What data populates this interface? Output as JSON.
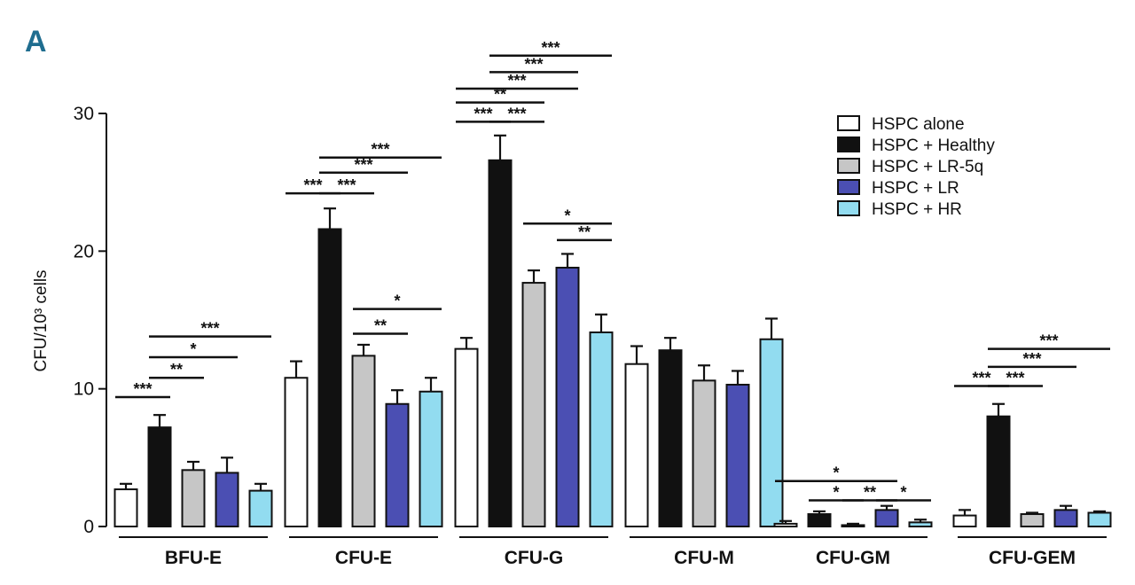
{
  "panel_label": "A",
  "colors": {
    "HSPC alone": "#ffffff",
    "HSPC + Healthy": "#111111",
    "HSPC + LR-5q": "#c6c6c6",
    "HSPC + LR": "#4b4fb3",
    "HSPC + HR": "#92dcf0"
  },
  "chart_data": {
    "type": "bar",
    "ylabel": "CFU/10³ cells",
    "ylim": [
      0,
      30
    ],
    "yticks": [
      0,
      10,
      20,
      30
    ],
    "categories": [
      "BFU-E",
      "CFU-E",
      "CFU-G",
      "CFU-M",
      "CFU-GM",
      "CFU-GEM"
    ],
    "legend_position": "top-right",
    "series": [
      {
        "name": "HSPC alone",
        "values": [
          2.7,
          10.8,
          12.9,
          11.8,
          0.2,
          0.8
        ],
        "errors": [
          0.4,
          1.2,
          0.8,
          1.3,
          0.2,
          0.4
        ]
      },
      {
        "name": "HSPC + Healthy",
        "values": [
          7.2,
          21.6,
          26.6,
          12.8,
          0.9,
          8.0
        ],
        "errors": [
          0.9,
          1.5,
          1.8,
          0.9,
          0.2,
          0.9
        ]
      },
      {
        "name": "HSPC + LR-5q",
        "values": [
          4.1,
          12.4,
          17.7,
          10.6,
          0.1,
          0.9
        ],
        "errors": [
          0.6,
          0.8,
          0.9,
          1.1,
          0.1,
          0.1
        ]
      },
      {
        "name": "HSPC + LR",
        "values": [
          3.9,
          8.9,
          18.8,
          10.3,
          1.2,
          1.2
        ],
        "errors": [
          1.1,
          1.0,
          1.0,
          1.0,
          0.3,
          0.3
        ]
      },
      {
        "name": "HSPC + HR",
        "values": [
          2.6,
          9.8,
          14.1,
          13.6,
          0.3,
          1.0
        ],
        "errors": [
          0.5,
          1.0,
          1.3,
          1.5,
          0.2,
          0.1
        ]
      }
    ],
    "significance": [
      {
        "category": "BFU-E",
        "from": 0,
        "to": 1,
        "label": "***",
        "y": 9.4
      },
      {
        "category": "BFU-E",
        "from": 1,
        "to": 2,
        "label": "**",
        "y": 10.8
      },
      {
        "category": "BFU-E",
        "from": 1,
        "to": 3,
        "label": "*",
        "y": 12.3
      },
      {
        "category": "BFU-E",
        "from": 1,
        "to": 4,
        "label": "***",
        "y": 13.8
      },
      {
        "category": "CFU-E",
        "from": 0,
        "to": 1,
        "label": "***",
        "y": 24.2
      },
      {
        "category": "CFU-E",
        "from": 1,
        "to": 2,
        "label": "***",
        "y": 24.2
      },
      {
        "category": "CFU-E",
        "from": 1,
        "to": 3,
        "label": "***",
        "y": 25.7
      },
      {
        "category": "CFU-E",
        "from": 1,
        "to": 4,
        "label": "***",
        "y": 26.8
      },
      {
        "category": "CFU-E",
        "from": 2,
        "to": 3,
        "label": "**",
        "y": 14.0
      },
      {
        "category": "CFU-E",
        "from": 2,
        "to": 4,
        "label": "*",
        "y": 15.8
      },
      {
        "category": "CFU-G",
        "from": 0,
        "to": 1,
        "label": "***",
        "y": 29.4
      },
      {
        "category": "CFU-G",
        "from": 1,
        "to": 2,
        "label": "***",
        "y": 29.4
      },
      {
        "category": "CFU-G",
        "from": 0,
        "to": 2,
        "label": "**",
        "y": 30.8
      },
      {
        "category": "CFU-G",
        "from": 0,
        "to": 3,
        "label": "***",
        "y": 31.8
      },
      {
        "category": "CFU-G",
        "from": 1,
        "to": 3,
        "label": "***",
        "y": 33.0
      },
      {
        "category": "CFU-G",
        "from": 1,
        "to": 4,
        "label": "***",
        "y": 34.2
      },
      {
        "category": "CFU-G",
        "from": 3,
        "to": 4,
        "label": "**",
        "y": 20.8
      },
      {
        "category": "CFU-G",
        "from": 2,
        "to": 4,
        "label": "*",
        "y": 22.0
      },
      {
        "category": "CFU-GM",
        "from": 0,
        "to": 3,
        "label": "*",
        "y": 3.3
      },
      {
        "category": "CFU-GM",
        "from": 1,
        "to": 2,
        "label": "*",
        "y": 1.9
      },
      {
        "category": "CFU-GM",
        "from": 2,
        "to": 3,
        "label": "**",
        "y": 1.9
      },
      {
        "category": "CFU-GM",
        "from": 3,
        "to": 4,
        "label": "*",
        "y": 1.9
      },
      {
        "category": "CFU-GEM",
        "from": 0,
        "to": 1,
        "label": "***",
        "y": 10.2
      },
      {
        "category": "CFU-GEM",
        "from": 1,
        "to": 2,
        "label": "***",
        "y": 10.2
      },
      {
        "category": "CFU-GEM",
        "from": 1,
        "to": 3,
        "label": "***",
        "y": 11.6
      },
      {
        "category": "CFU-GEM",
        "from": 1,
        "to": 4,
        "label": "***",
        "y": 12.9
      }
    ]
  }
}
